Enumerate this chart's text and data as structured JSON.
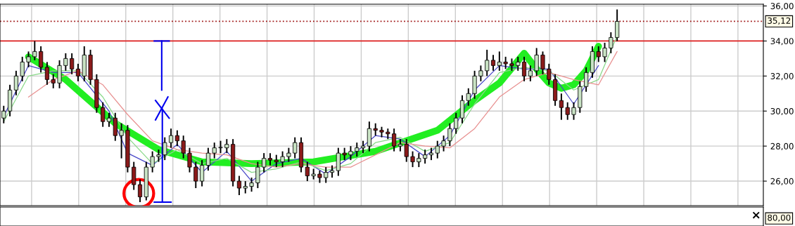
{
  "chart_data": [
    {
      "type": "candlestick",
      "categories": [
        null,
        null,
        null,
        null,
        null,
        null,
        null,
        null,
        null,
        null,
        null,
        null,
        null,
        null,
        null,
        null,
        null,
        null,
        null,
        null,
        null,
        null,
        null,
        null,
        null,
        null,
        null,
        null,
        null,
        null,
        null,
        null,
        null,
        null,
        null,
        null,
        null,
        null,
        null,
        null,
        null,
        null,
        null,
        null,
        null,
        null,
        null,
        null,
        null,
        null,
        null,
        null,
        null,
        null,
        null,
        null,
        null,
        null,
        null,
        null,
        null,
        null,
        null,
        null,
        null,
        null,
        null,
        null,
        null,
        null,
        null,
        null,
        null,
        null,
        null,
        null,
        null,
        null,
        null,
        null,
        null,
        null,
        null,
        null,
        null,
        null,
        null,
        null,
        null,
        null,
        null,
        null,
        null,
        null,
        null,
        null,
        null,
        null,
        null,
        null,
        null,
        null,
        null,
        null,
        null,
        null,
        null,
        null,
        null,
        null,
        null,
        null,
        null,
        null,
        null,
        null,
        null,
        null,
        null,
        null,
        null,
        null,
        null
      ],
      "ohlc": [
        [
          29.6,
          30.3,
          29.3,
          30.0
        ],
        [
          30.0,
          31.5,
          29.7,
          31.2
        ],
        [
          31.2,
          32.3,
          30.9,
          32.0
        ],
        [
          32.0,
          33.1,
          31.7,
          32.8
        ],
        [
          32.8,
          33.4,
          32.5,
          33.1
        ],
        [
          33.1,
          34.0,
          32.9,
          33.4
        ],
        [
          33.4,
          33.7,
          32.2,
          32.5
        ],
        [
          32.5,
          32.8,
          31.5,
          31.8
        ],
        [
          31.8,
          32.1,
          31.3,
          31.6
        ],
        [
          31.6,
          32.9,
          31.3,
          32.6
        ],
        [
          32.6,
          33.3,
          32.3,
          33.0
        ],
        [
          33.0,
          33.3,
          32.1,
          32.4
        ],
        [
          32.4,
          32.7,
          31.7,
          32.0
        ],
        [
          32.0,
          33.7,
          31.7,
          33.2
        ],
        [
          33.2,
          33.5,
          31.5,
          31.8
        ],
        [
          31.8,
          32.1,
          29.9,
          30.2
        ],
        [
          30.2,
          30.5,
          29.1,
          29.4
        ],
        [
          29.4,
          29.9,
          29.1,
          29.6
        ],
        [
          29.6,
          29.9,
          28.3,
          28.6
        ],
        [
          28.6,
          29.3,
          27.3,
          28.9
        ],
        [
          28.9,
          29.2,
          26.5,
          26.8
        ],
        [
          26.8,
          27.1,
          25.5,
          25.8
        ],
        [
          25.8,
          26.1,
          24.8,
          25.1
        ],
        [
          25.1,
          27.1,
          24.9,
          26.8
        ],
        [
          26.8,
          27.7,
          26.5,
          27.4
        ],
        [
          27.4,
          27.8,
          27.1,
          27.5
        ],
        [
          27.5,
          28.5,
          27.2,
          28.2
        ],
        [
          28.2,
          29.0,
          27.9,
          28.6
        ],
        [
          28.6,
          28.9,
          28.0,
          28.3
        ],
        [
          28.3,
          28.6,
          27.3,
          27.6
        ],
        [
          27.6,
          27.9,
          26.5,
          26.8
        ],
        [
          26.8,
          27.1,
          25.6,
          26.0
        ],
        [
          26.0,
          27.2,
          25.7,
          26.9
        ],
        [
          26.9,
          27.9,
          26.6,
          27.6
        ],
        [
          27.6,
          28.2,
          27.3,
          27.9
        ],
        [
          27.9,
          28.3,
          27.6,
          27.9
        ],
        [
          27.9,
          28.4,
          27.6,
          28.1
        ],
        [
          28.1,
          28.4,
          25.7,
          26.0
        ],
        [
          26.0,
          26.3,
          25.2,
          25.6
        ],
        [
          25.6,
          26.0,
          25.3,
          25.7
        ],
        [
          25.7,
          26.2,
          25.4,
          25.9
        ],
        [
          25.9,
          27.1,
          25.6,
          26.8
        ],
        [
          26.8,
          27.6,
          26.5,
          27.3
        ],
        [
          27.3,
          27.6,
          26.9,
          27.2
        ],
        [
          27.2,
          27.5,
          26.8,
          27.1
        ],
        [
          27.1,
          27.7,
          26.8,
          27.4
        ],
        [
          27.4,
          27.9,
          27.1,
          27.6
        ],
        [
          27.6,
          28.5,
          27.3,
          28.2
        ],
        [
          28.2,
          28.5,
          26.5,
          26.8
        ],
        [
          26.8,
          27.1,
          26.0,
          26.3
        ],
        [
          26.3,
          26.7,
          26.1,
          26.4
        ],
        [
          26.4,
          26.6,
          25.9,
          26.2
        ],
        [
          26.2,
          26.8,
          25.9,
          26.5
        ],
        [
          26.5,
          26.9,
          26.2,
          26.6
        ],
        [
          26.6,
          27.9,
          26.3,
          27.6
        ],
        [
          27.6,
          27.9,
          27.2,
          27.5
        ],
        [
          27.5,
          28.0,
          27.2,
          27.7
        ],
        [
          27.7,
          28.2,
          27.4,
          27.9
        ],
        [
          27.9,
          28.3,
          27.6,
          28.0
        ],
        [
          28.0,
          29.4,
          27.7,
          29.0
        ],
        [
          29.0,
          29.3,
          28.6,
          28.9
        ],
        [
          28.9,
          29.1,
          28.5,
          28.8
        ],
        [
          28.8,
          29.0,
          28.4,
          28.7
        ],
        [
          28.7,
          29.0,
          27.7,
          28.0
        ],
        [
          28.0,
          28.4,
          27.7,
          28.1
        ],
        [
          28.1,
          28.4,
          27.1,
          27.4
        ],
        [
          27.4,
          27.7,
          26.8,
          27.1
        ],
        [
          27.1,
          27.6,
          26.8,
          27.3
        ],
        [
          27.3,
          27.8,
          27.0,
          27.5
        ],
        [
          27.5,
          27.9,
          27.2,
          27.6
        ],
        [
          27.6,
          28.3,
          27.3,
          28.0
        ],
        [
          28.0,
          28.6,
          27.7,
          28.3
        ],
        [
          28.3,
          29.3,
          28.0,
          29.0
        ],
        [
          29.0,
          29.9,
          28.7,
          29.6
        ],
        [
          29.6,
          30.9,
          29.3,
          30.6
        ],
        [
          30.6,
          31.3,
          30.3,
          31.0
        ],
        [
          31.0,
          32.3,
          30.7,
          32.0
        ],
        [
          32.0,
          32.6,
          31.7,
          32.3
        ],
        [
          32.3,
          33.5,
          32.0,
          32.9
        ],
        [
          32.9,
          33.2,
          32.3,
          32.6
        ],
        [
          32.6,
          33.4,
          32.3,
          32.8
        ],
        [
          32.8,
          33.1,
          32.4,
          32.7
        ],
        [
          32.7,
          33.0,
          32.3,
          32.6
        ],
        [
          32.6,
          33.1,
          32.3,
          32.8
        ],
        [
          32.8,
          33.1,
          31.7,
          32.0
        ],
        [
          32.0,
          32.6,
          31.7,
          32.3
        ],
        [
          32.3,
          33.6,
          32.0,
          33.2
        ],
        [
          33.2,
          33.4,
          32.1,
          32.4
        ],
        [
          32.4,
          32.7,
          31.5,
          31.8
        ],
        [
          31.8,
          32.1,
          30.3,
          30.6
        ],
        [
          30.6,
          31.0,
          29.5,
          30.2
        ],
        [
          30.2,
          30.5,
          29.5,
          29.8
        ],
        [
          29.8,
          30.5,
          29.5,
          30.2
        ],
        [
          30.2,
          31.7,
          29.9,
          31.4
        ],
        [
          31.4,
          32.5,
          31.1,
          32.2
        ],
        [
          32.2,
          33.7,
          31.9,
          33.4
        ],
        [
          33.4,
          33.7,
          32.8,
          33.1
        ],
        [
          33.1,
          33.9,
          32.8,
          33.6
        ],
        [
          33.6,
          34.5,
          33.3,
          34.2
        ],
        [
          34.2,
          35.8,
          34.0,
          35.12
        ],
        null,
        null,
        null,
        null,
        null,
        null,
        null,
        null,
        null,
        null,
        null,
        null,
        null,
        null,
        null,
        null,
        null,
        null,
        null,
        null,
        null,
        null,
        null
      ],
      "colors": [
        "#c9e3c4",
        "#c9e3c4",
        "#c9e3c4",
        "#c9e3c4",
        "#c9e3c4",
        "#c9e3c4",
        "#8b1a1a",
        "#8b1a1a",
        "#8b1a1a",
        "#c9e3c4",
        "#c9e3c4",
        "#8b1a1a",
        "#8b1a1a",
        "#c9e3c4",
        "#8b1a1a",
        "#8b1a1a",
        "#8b1a1a",
        "#c9e3c4",
        "#8b1a1a",
        "#c9e3c4",
        "#8b1a1a",
        "#8b1a1a",
        "#8b1a1a",
        "#c9e3c4",
        "#c9e3c4",
        "#c9e3c4",
        "#c9e3c4",
        "#c9e3c4",
        "#8b1a1a",
        "#8b1a1a",
        "#8b1a1a",
        "#8b1a1a",
        "#c9e3c4",
        "#c9e3c4",
        "#c9e3c4",
        "#c9e3c4",
        "#c9e3c4",
        "#8b1a1a",
        "#8b1a1a",
        "#c9e3c4",
        "#c9e3c4",
        "#c9e3c4",
        "#c9e3c4",
        "#8b1a1a",
        "#8b1a1a",
        "#c9e3c4",
        "#c9e3c4",
        "#c9e3c4",
        "#8b1a1a",
        "#8b1a1a",
        "#c9e3c4",
        "#8b1a1a",
        "#c9e3c4",
        "#c9e3c4",
        "#c9e3c4",
        "#8b1a1a",
        "#c9e3c4",
        "#c9e3c4",
        "#c9e3c4",
        "#c9e3c4",
        "#8b1a1a",
        "#8b1a1a",
        "#8b1a1a",
        "#8b1a1a",
        "#c9e3c4",
        "#8b1a1a",
        "#8b1a1a",
        "#c9e3c4",
        "#c9e3c4",
        "#c9e3c4",
        "#c9e3c4",
        "#c9e3c4",
        "#c9e3c4",
        "#c9e3c4",
        "#c9e3c4",
        "#c9e3c4",
        "#c9e3c4",
        "#c9e3c4",
        "#c9e3c4",
        "#8b1a1a",
        "#c9e3c4",
        "#8b1a1a",
        "#8b1a1a",
        "#c9e3c4",
        "#8b1a1a",
        "#c9e3c4",
        "#c9e3c4",
        "#8b1a1a",
        "#8b1a1a",
        "#8b1a1a",
        "#8b1a1a",
        "#8b1a1a",
        "#c9e3c4",
        "#c9e3c4",
        "#c9e3c4",
        "#c9e3c4",
        "#8b1a1a",
        "#c9e3c4",
        "#c9e3c4",
        "#c9e3c4",
        null,
        null,
        null,
        null,
        null,
        null,
        null,
        null,
        null,
        null,
        null,
        null,
        null,
        null,
        null,
        null,
        null,
        null,
        null,
        null,
        null,
        null,
        null
      ],
      "series": [
        {
          "type": "line",
          "color": "#22ee22",
          "values": [
            null,
            null,
            null,
            null,
            33.1,
            null,
            null,
            null,
            null,
            null,
            31.8,
            null,
            null,
            null,
            null,
            null,
            null,
            null,
            29.3,
            null,
            null,
            null,
            null,
            null,
            null,
            27.8,
            null,
            null,
            null,
            null,
            null,
            null,
            27.1,
            null,
            null,
            null,
            null,
            null,
            null,
            null,
            27.0,
            null,
            null,
            null,
            null,
            null,
            null,
            null,
            null,
            null,
            27.1,
            null,
            null,
            null,
            null,
            null,
            null,
            null,
            null,
            null,
            27.7,
            null,
            null,
            null,
            null,
            null,
            null,
            null,
            null,
            null,
            28.9,
            null,
            null,
            null,
            null,
            null,
            30.6,
            null,
            null,
            null,
            31.6,
            null,
            null,
            null,
            33.3,
            null,
            32.4,
            null,
            31.6,
            null,
            31.3,
            null,
            31.5,
            null,
            32.3,
            null,
            33.7,
            null,
            null,
            null,
            null,
            null,
            null,
            null,
            null,
            null,
            null,
            null,
            null,
            null,
            null,
            null,
            null,
            null,
            null,
            null,
            null,
            null,
            null,
            null,
            null,
            null,
            null
          ]
        },
        {
          "type": "line",
          "color": "#4848c8",
          "values": [
            29.7,
            null,
            null,
            null,
            32.6,
            null,
            null,
            null,
            32.2,
            null,
            null,
            null,
            32.2,
            null,
            null,
            null,
            null,
            30.0,
            null,
            null,
            27.6,
            null,
            null,
            null,
            26.9,
            null,
            null,
            null,
            28.1,
            null,
            null,
            null,
            26.5,
            null,
            null,
            null,
            27.7,
            null,
            null,
            null,
            26.0,
            null,
            null,
            null,
            27.0,
            null,
            null,
            null,
            27.3,
            null,
            null,
            null,
            26.4,
            null,
            null,
            null,
            27.4,
            null,
            null,
            null,
            28.6,
            null,
            null,
            null,
            28.4,
            null,
            null,
            null,
            27.4,
            null,
            null,
            null,
            28.6,
            null,
            null,
            null,
            31.2,
            null,
            null,
            null,
            32.6,
            null,
            null,
            null,
            32.4,
            null,
            null,
            null,
            32.4,
            null,
            null,
            null,
            30.4,
            null,
            null,
            null,
            32.6,
            null,
            null,
            null,
            null,
            null,
            null,
            null,
            null,
            null,
            null,
            null,
            null,
            null,
            null,
            null,
            null,
            null,
            null,
            null,
            null,
            null,
            null,
            null,
            null,
            null,
            null
          ]
        },
        {
          "type": "line",
          "color": "#88d888",
          "values": [
            29.4,
            null,
            null,
            null,
            32.0,
            null,
            null,
            null,
            32.3,
            null,
            null,
            null,
            32.3,
            null,
            null,
            null,
            30.8,
            null,
            null,
            null,
            28.5,
            null,
            null,
            null,
            27.0,
            null,
            null,
            null,
            27.8,
            null,
            null,
            null,
            27.0,
            null,
            null,
            null,
            27.3,
            null,
            null,
            null,
            26.5,
            null,
            null,
            null,
            26.7,
            null,
            null,
            null,
            27.1,
            null,
            null,
            null,
            26.6,
            null,
            null,
            null,
            27.0,
            null,
            null,
            null,
            28.2,
            null,
            null,
            null,
            28.5,
            null,
            null,
            null,
            27.7,
            null,
            null,
            null,
            28.2,
            null,
            null,
            null,
            30.4,
            null,
            null,
            null,
            32.2,
            null,
            null,
            null,
            32.5,
            null,
            null,
            null,
            32.3,
            null,
            null,
            null,
            31.2,
            null,
            null,
            null,
            31.8,
            null,
            null,
            34.3,
            null,
            null,
            null,
            null,
            null,
            null,
            null,
            null,
            null,
            null,
            null,
            null,
            null,
            null,
            null,
            null,
            null,
            null,
            null,
            null,
            null,
            null,
            null
          ]
        },
        {
          "type": "line",
          "color": "#e89090",
          "values": [
            null,
            null,
            null,
            null,
            30.8,
            null,
            null,
            null,
            31.8,
            null,
            null,
            null,
            32.3,
            null,
            null,
            null,
            31.5,
            null,
            null,
            null,
            29.8,
            null,
            null,
            null,
            28.3,
            null,
            null,
            null,
            27.8,
            null,
            null,
            null,
            27.6,
            null,
            null,
            null,
            27.5,
            null,
            null,
            null,
            27.0,
            null,
            null,
            null,
            26.8,
            null,
            null,
            null,
            27.0,
            null,
            null,
            null,
            26.8,
            null,
            null,
            null,
            26.8,
            null,
            null,
            null,
            27.5,
            null,
            null,
            null,
            28.2,
            null,
            null,
            null,
            28.0,
            null,
            null,
            null,
            27.9,
            null,
            null,
            null,
            29.0,
            null,
            null,
            null,
            30.8,
            null,
            null,
            null,
            31.8,
            null,
            null,
            null,
            32.2,
            null,
            null,
            null,
            31.8,
            null,
            null,
            null,
            31.5,
            null,
            null,
            33.4,
            null,
            null,
            null,
            null,
            null,
            null,
            null,
            null,
            null,
            null,
            null,
            null,
            null,
            null,
            null,
            null,
            null,
            null,
            null,
            null,
            null,
            null,
            null
          ]
        }
      ],
      "ylim": [
        24.6,
        36.1
      ],
      "yticks": [
        {
          "value": 26,
          "label": "26,00"
        },
        {
          "value": 28,
          "label": "28,00"
        },
        {
          "value": 30,
          "label": "30,00"
        },
        {
          "value": 32,
          "label": "32,00"
        },
        {
          "value": 34,
          "label": "34,00"
        },
        {
          "value": 36,
          "label": "36,00"
        }
      ],
      "ref_lines": [
        {
          "axis": "y",
          "value": 34,
          "color": "#e02020",
          "line_style": "solid"
        },
        {
          "axis": "y",
          "value": 35.12,
          "label": "35,12",
          "color": "#a01818",
          "line_style": "dotted"
        }
      ],
      "grid": true,
      "tick_labels": "y"
    },
    {
      "type": "other",
      "annotations": [
        "×",
        "80,00"
      ]
    }
  ]
}
